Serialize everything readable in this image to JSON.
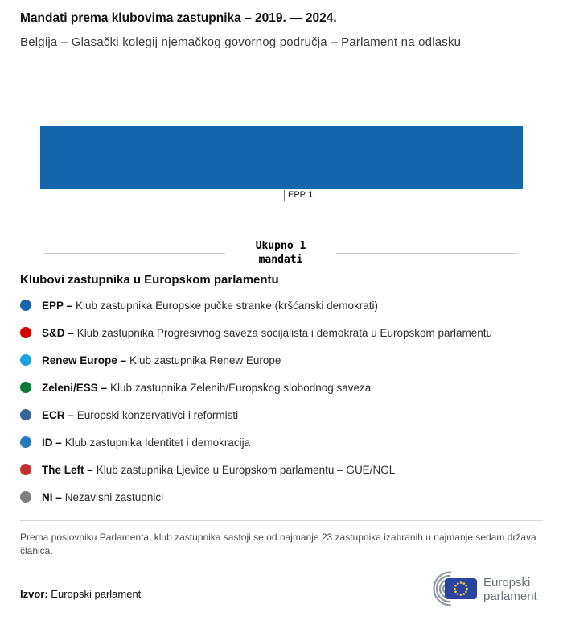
{
  "header": {
    "title": "Mandati prema klubovima zastupnika – 2019. — 2024.",
    "subtitle": "Belgija – Glasački kolegij njemačkog govornog područja – Parlament na odlasku"
  },
  "chart_data": {
    "type": "bar",
    "orientation": "horizontal-stacked",
    "title": "Mandati prema klubovima zastupnika – 2019. — 2024.",
    "subtitle": "Belgija – Glasački kolegij njemačkog govornog područja – Parlament na odlasku",
    "total": 1,
    "segments": [
      {
        "name": "EPP",
        "value": 1,
        "color": "#1665ac"
      }
    ],
    "tick": {
      "name": "EPP",
      "value": "1"
    },
    "total_label": {
      "line1": "Ukupno 1",
      "line2": "mandati"
    }
  },
  "legend": {
    "heading": "Klubovi zastupnika u Europskom parlamentu",
    "items": [
      {
        "abbr": "EPP –",
        "desc": "Klub zastupnika Europske pučke stranke (kršćanski demokrati)",
        "color": "#1665ac"
      },
      {
        "abbr": "S&D –",
        "desc": "Klub zastupnika Progresivnog saveza socijalista i demokrata u Europskom parlamentu",
        "color": "#d50000"
      },
      {
        "abbr": "Renew Europe –",
        "desc": "Klub zastupnika Renew Europe",
        "color": "#19a3e1"
      },
      {
        "abbr": "Zeleni/ESS –",
        "desc": "Klub zastupnika Zelenih/Europskog slobodnog saveza",
        "color": "#0a7a33"
      },
      {
        "abbr": "ECR –",
        "desc": "Europski konzervativci i reformisti",
        "color": "#35679c"
      },
      {
        "abbr": "ID –",
        "desc": "Klub zastupnika Identitet i demokracija",
        "color": "#2a7ab9"
      },
      {
        "abbr": "The Left –",
        "desc": "Klub zastupnika Ljevice u Europskom parlamentu – GUE/NGL",
        "color": "#c4302f"
      },
      {
        "abbr": "NI –",
        "desc": "Nezavisni zastupnici",
        "color": "#7f7f7f"
      }
    ]
  },
  "footer": {
    "note": "Prema poslovniku Parlamenta, klub zastupnika sastoji se od najmanje 23 zastupnika izabranih u najmanje sedam država članica.",
    "source_label": "Izvor:",
    "source_value": "Europski parlament",
    "logo_line1": "Europski",
    "logo_line2": "parlament"
  }
}
